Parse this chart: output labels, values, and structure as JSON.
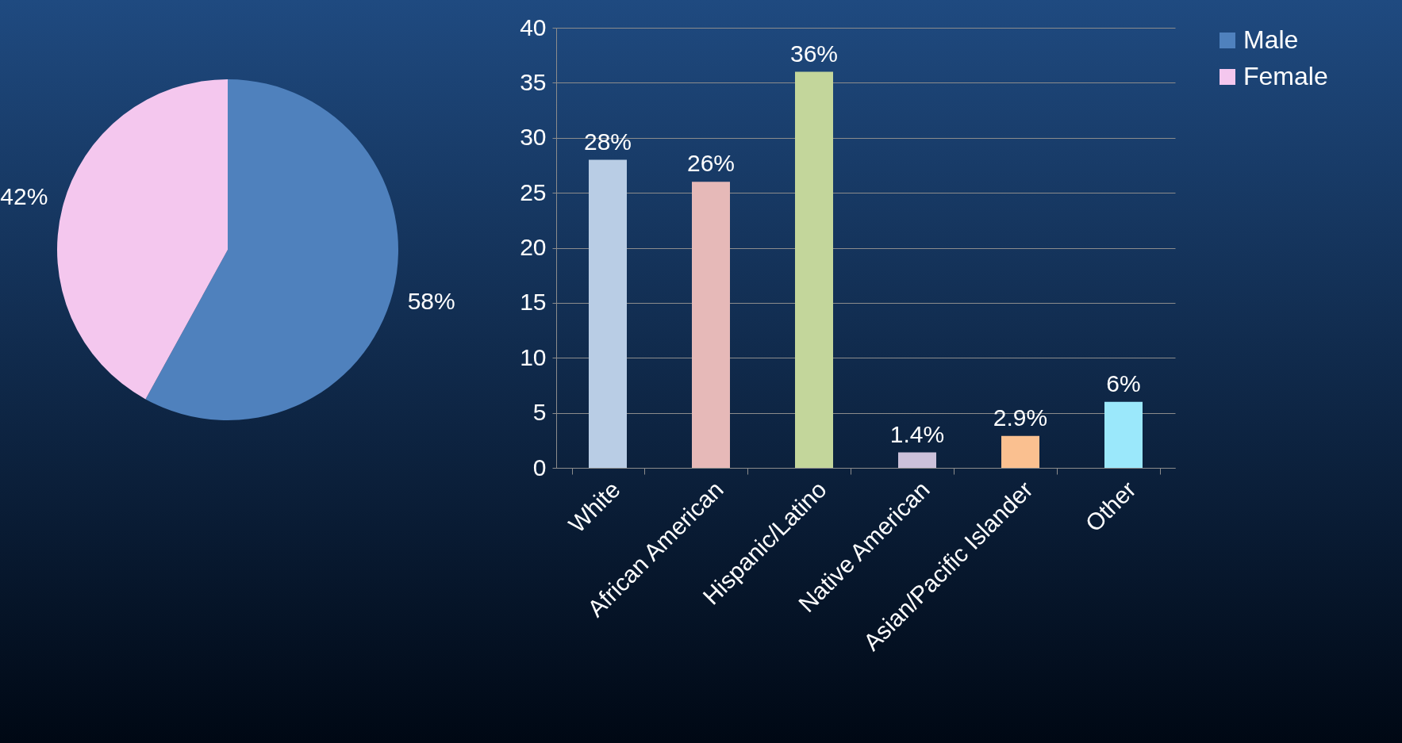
{
  "chart_data": [
    {
      "type": "pie",
      "categories": [
        "Male",
        "Female"
      ],
      "values": [
        58,
        42
      ],
      "colors": [
        "#4f81bd",
        "#f4c7ee"
      ],
      "value_labels": [
        "58%",
        "42%"
      ],
      "legend": "right"
    },
    {
      "type": "bar",
      "categories": [
        "White",
        "African American",
        "Hispanic/Latino",
        "Native American",
        "Asian/Pacific Islander",
        "Other"
      ],
      "values": [
        28,
        26,
        36,
        1.4,
        2.9,
        6
      ],
      "colors": [
        "#b9cde5",
        "#e6b9b8",
        "#c3d69b",
        "#ccc1da",
        "#fac090",
        "#9be8fb"
      ],
      "value_labels": [
        "28%",
        "26%",
        "36%",
        "1.4%",
        "2.9%",
        "6%"
      ],
      "ylim": [
        0,
        40
      ],
      "yticks": [
        0,
        5,
        10,
        15,
        20,
        25,
        30,
        35,
        40
      ],
      "grid": "y"
    }
  ]
}
